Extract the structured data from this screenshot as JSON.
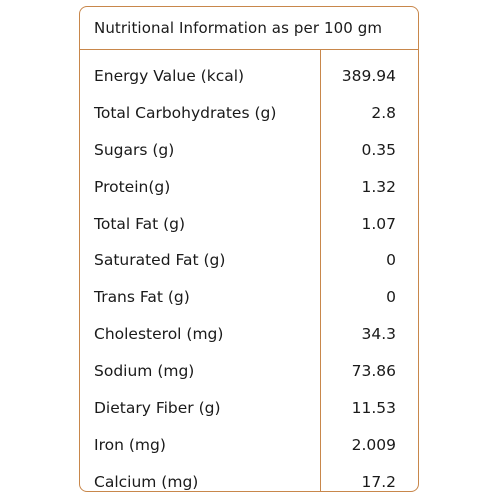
{
  "table": {
    "title": "Nutritional Information as per 100 gm",
    "border_color": "#c8874b",
    "rows": [
      {
        "label": "Energy Value (kcal)",
        "value": "389.94"
      },
      {
        "label": "Total Carbohydrates (g)",
        "value": "2.8"
      },
      {
        "label": "Sugars (g)",
        "value": "0.35"
      },
      {
        "label": "Protein(g)",
        "value": "1.32"
      },
      {
        "label": "Total Fat (g)",
        "value": "1.07"
      },
      {
        "label": "Saturated Fat (g)",
        "value": "0"
      },
      {
        "label": "Trans Fat (g)",
        "value": "0"
      },
      {
        "label": "Cholesterol (mg)",
        "value": "34.3"
      },
      {
        "label": "Sodium (mg)",
        "value": "73.86"
      },
      {
        "label": "Dietary Fiber (g)",
        "value": "11.53"
      },
      {
        "label": "Iron (mg)",
        "value": "2.009"
      },
      {
        "label": "Calcium (mg)",
        "value": "17.2"
      }
    ]
  }
}
